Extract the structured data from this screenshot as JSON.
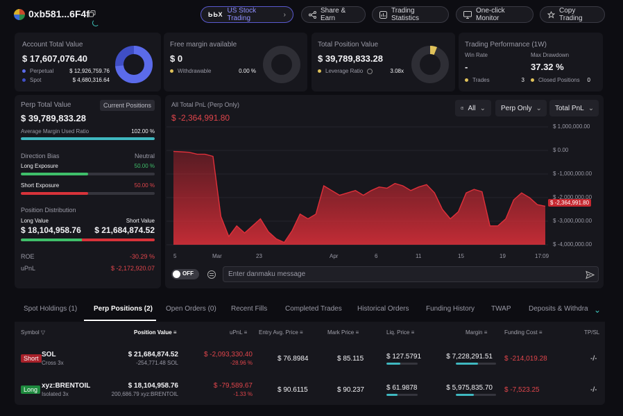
{
  "header": {
    "address": "0xb581...6F4f",
    "buttons": [
      {
        "label": "US Stock Trading"
      },
      {
        "label": "Share & Earn"
      },
      {
        "label": "Trading Statistics"
      },
      {
        "label": "One-click Monitor"
      },
      {
        "label": "Copy Trading"
      }
    ],
    "brand_mark": "ЬЬХ"
  },
  "account": {
    "title": "Account Total Value",
    "value": "$ 17,607,076.40",
    "perpetual_label": "Perpetual",
    "perpetual_value": "$ 12,926,759.76",
    "spot_label": "Spot",
    "spot_value": "$ 4,680,316.64",
    "perpetual_color": "#5b6bea",
    "spot_color": "#3f4ec4",
    "perpetual_share": 0.734
  },
  "margin": {
    "title": "Free margin available",
    "value": "$ 0",
    "withdrawable_label": "Withdrawable",
    "withdrawable_value": "0.00 %"
  },
  "position": {
    "title": "Total Position Value",
    "value": "$ 39,789,833.28",
    "leverage_label": "Leverage Ratio",
    "leverage_value": "3.08x",
    "accent_color": "#e0c25a"
  },
  "performance": {
    "title": "Trading Performance (1W)",
    "win_rate_label": "Win Rate",
    "win_rate_value": "-",
    "drawdown_label": "Max Drawdown",
    "drawdown_value": "37.32 %",
    "trades_label": "Trades",
    "trades_value": "3",
    "closed_label": "Closed Positions",
    "closed_value": "0"
  },
  "perp": {
    "title": "Perp Total Value",
    "tag": "Current Positions",
    "value": "$ 39,789,833.28",
    "avg_margin_label": "Average Margin Used Ratio",
    "avg_margin_value": "102.00 %",
    "avg_margin_fill": 1.0,
    "direction_label": "Direction Bias",
    "direction_value": "Neutral",
    "long_exposure_label": "Long Exposure",
    "long_exposure_value": "50.00 %",
    "short_exposure_label": "Short Exposure",
    "short_exposure_value": "50.00 %",
    "distribution_label": "Position Distribution",
    "long_value_label": "Long Value",
    "short_value_label": "Short Value",
    "long_value": "$ 18,104,958.76",
    "short_value": "$ 21,684,874.52",
    "long_share": 0.455,
    "roe_label": "ROE",
    "roe_value": "-30.29 %",
    "upnl_label": "uPnL",
    "upnl_value": "$ -2,172,920.07"
  },
  "pnl_chart": {
    "title": "All Total PnL (Perp Only)",
    "value": "$ -2,364,991.80",
    "filters": [
      "All",
      "Perp Only",
      "Total PnL"
    ],
    "current_label": "$ -2,364,991.80",
    "toggle_label": "OFF",
    "danmaku_placeholder": "Enter danmaku message",
    "chart_data": {
      "type": "area",
      "title": "All Total PnL (Perp Only)",
      "x_ticks": [
        "5",
        "Mar",
        "23",
        "Apr",
        "6",
        "11",
        "15",
        "19",
        "17:09"
      ],
      "y_ticks": [
        "$ 1,000,000.00",
        "$ 0.00",
        "$ -1,000,000.00",
        "$ -2,000,000.00",
        "$ -3,000,000.00",
        "$ -4,000,000.00"
      ],
      "ylim": [
        -4000000,
        1000000
      ],
      "values": [
        -40000,
        -60000,
        -80000,
        -160000,
        -160000,
        -250000,
        -2800000,
        -3650000,
        -3200000,
        -3500000,
        -3200000,
        -2900000,
        -3450000,
        -3750000,
        -3900000,
        -3400000,
        -2700000,
        -2900000,
        -2700000,
        -1500000,
        -1700000,
        -1900000,
        -1800000,
        -1700000,
        -1900000,
        -1700000,
        -1550000,
        -1600000,
        -1400000,
        -1500000,
        -1700000,
        -1550000,
        -1450000,
        -1800000,
        -2500000,
        -2900000,
        -2600000,
        -1800000,
        -1650000,
        -1750000,
        -3200000,
        -3200000,
        -2900000,
        -2100000,
        -1800000,
        -2000000,
        -2300000,
        -2364991.8
      ],
      "grid": true,
      "line_color": "#e0303a"
    }
  },
  "tabs": [
    "Spot Holdings (1)",
    "Perp Positions (2)",
    "Open Orders (0)",
    "Recent Fills",
    "Completed Trades",
    "Historical Orders",
    "Funding History",
    "TWAP",
    "Deposits & Withdraw"
  ],
  "table": {
    "headers": [
      "Symbol",
      "Position Value",
      "uPnL",
      "Entry Avg. Price",
      "Mark Price",
      "Liq. Price",
      "Margin",
      "Funding Cost",
      "TP/SL"
    ],
    "rows": [
      {
        "side": "Short",
        "symbol": "SOL",
        "mode": "Cross 3x",
        "position_value": "$ 21,684,874.52",
        "position_qty": "-254,771.48 SOL",
        "upnl": "$ -2,093,330.40",
        "upnl_pct": "-28.96 %",
        "entry": "$ 76.8984",
        "mark": "$ 85.115",
        "liq": "$ 127.5791",
        "margin": "$ 7,228,291.51",
        "margin_fill": 0.55,
        "funding": "$ -214,019.28",
        "tpsl": "-/-"
      },
      {
        "side": "Long",
        "symbol": "xyz:BRENTOIL",
        "mode": "Isolated 3x",
        "position_value": "$ 18,104,958.76",
        "position_qty": "200,686.79 xyz:BRENTOIL",
        "upnl": "$ -79,589.67",
        "upnl_pct": "-1.33 %",
        "entry": "$ 90.6115",
        "mark": "$ 90.237",
        "liq": "$ 61.9878",
        "margin": "$ 5,975,835.70",
        "margin_fill": 0.45,
        "funding": "$ -7,523.25",
        "tpsl": "-/-"
      }
    ]
  }
}
